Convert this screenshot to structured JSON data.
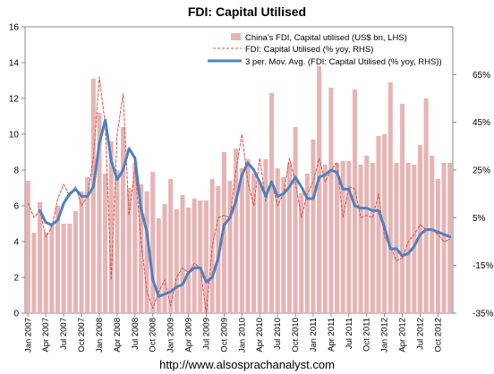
{
  "page": {
    "watermark": "http://www.alsosprachanalyst.com"
  },
  "chart_data": {
    "type": "bar+line",
    "title": "FDI: Capital Utilised",
    "xlabel": "",
    "ylabel_left": "",
    "ylabel_right": "",
    "x_tick_labels": [
      "Jan 2007",
      "Apr 2007",
      "Jul 2007",
      "Oct 2007",
      "Jan 2008",
      "Apr 2008",
      "Jul 2008",
      "Oct 2008",
      "Jan 2009",
      "Apr 2009",
      "Jul 2009",
      "Oct 2009",
      "Jan 2010",
      "Apr 2010",
      "Jul 2010",
      "Oct 2010",
      "Jan 2011",
      "Apr 2011",
      "Jul 2011",
      "Oct 2011",
      "Jan 2012",
      "Apr 2012",
      "Jul 2012",
      "Oct 2012"
    ],
    "y_left": {
      "min": 0,
      "max": 16,
      "step": 2,
      "ticks": [
        "0",
        "2",
        "4",
        "6",
        "8",
        "10",
        "12",
        "14",
        "16"
      ]
    },
    "y_right": {
      "min": -35,
      "max": 85,
      "ticks": [
        "-35%",
        "-15%",
        "5%",
        "25%",
        "45%",
        "65%"
      ],
      "tick_values": [
        -35,
        -15,
        5,
        25,
        45,
        65
      ]
    },
    "grid": false,
    "legend_position": "top-right",
    "colors": {
      "bars": "#e6b4b4",
      "yoy": "#d9534f",
      "avg": "#4f81bd"
    },
    "series": [
      {
        "name": "China's FDI, Capital utilised (US$ bn, LHS)",
        "kind": "bar",
        "axis": "left",
        "values": [
          7.4,
          4.5,
          6.2,
          4.5,
          4.9,
          6.0,
          5.0,
          5.0,
          5.7,
          6.8,
          7.6,
          13.1,
          11.2,
          7.8,
          9.6,
          8.0,
          10.4,
          7.0,
          8.4,
          7.2,
          6.8,
          7.9,
          5.3,
          6.1,
          7.5,
          5.8,
          6.6,
          5.9,
          6.4,
          6.3,
          6.3,
          7.5,
          7.1,
          9.0,
          7.4,
          9.2,
          8.1,
          8.6,
          7.8,
          7.3,
          8.6,
          12.3,
          8.1,
          7.6,
          8.4,
          10.4,
          6.7,
          7.8,
          9.7,
          13.8,
          8.3,
          12.6,
          8.4,
          8.5,
          8.5,
          12.5,
          8.3,
          8.8,
          8.4,
          9.9,
          10.0,
          12.9,
          8.4,
          11.7,
          8.4,
          8.3,
          9.4,
          12.0,
          8.8,
          7.5,
          8.4,
          8.4
        ]
      },
      {
        "name": "FDI: Capital Utilised (% yoy, RHS)",
        "kind": "line",
        "style": "dashed",
        "axis": "right",
        "values": [
          11,
          5,
          8,
          -3,
          1,
          13,
          19,
          14,
          18,
          10,
          14,
          30,
          64,
          44,
          -21,
          40,
          57,
          6,
          26,
          -4,
          -26,
          -33,
          -26,
          -21,
          -32,
          -20,
          -16,
          -18,
          -14,
          -16,
          -36,
          -7,
          5,
          6,
          5,
          25,
          40,
          20,
          10,
          30,
          12,
          20,
          10,
          15,
          30,
          20,
          5,
          15,
          20,
          30,
          20,
          25,
          28,
          5,
          18,
          17,
          5,
          6,
          5,
          15,
          -3,
          -7,
          -13,
          -12,
          -5,
          -2,
          2,
          0,
          0,
          -2,
          -5,
          -4
        ]
      },
      {
        "name": "3 per. Mov. Avg. (FDI: Capital Utilised (% yoy, RHS))",
        "kind": "line",
        "style": "solid",
        "axis": "right",
        "values": [
          null,
          null,
          8,
          3,
          2,
          4,
          11,
          15,
          17,
          14,
          14,
          18,
          36,
          46,
          29,
          21,
          25,
          34,
          30,
          9,
          -1,
          -21,
          -28,
          -27,
          -26,
          -24,
          -23,
          -18,
          -16,
          -16,
          -22,
          -20,
          -12,
          2,
          5,
          12,
          23,
          28,
          25,
          20,
          14,
          20,
          14,
          15,
          18,
          22,
          18,
          13,
          13,
          22,
          23,
          25,
          24,
          17,
          17,
          10,
          9,
          9,
          8,
          8,
          1,
          -8,
          -8,
          -11,
          -10,
          -7,
          -2,
          0,
          0,
          -1,
          -2,
          -3
        ]
      }
    ]
  }
}
